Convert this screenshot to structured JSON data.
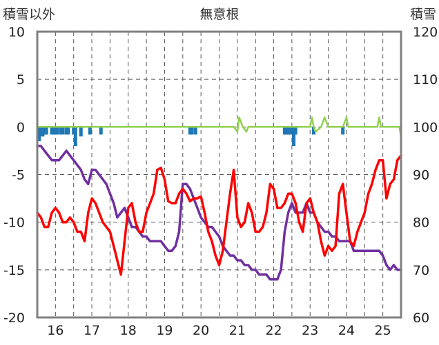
{
  "chart_data": {
    "type": "line",
    "title": "無意根",
    "left_axis_label": "積雪以外",
    "right_axis_label": "積雪",
    "left_ylim": [
      -20,
      10
    ],
    "left_yticks": [
      10,
      5,
      0,
      -5,
      -10,
      -15,
      -20
    ],
    "right_ylim": [
      60,
      120
    ],
    "right_yticks": [
      120,
      110,
      100,
      90,
      80,
      70,
      60
    ],
    "xlim": [
      15.5,
      25.5
    ],
    "xticks": [
      16,
      17,
      18,
      19,
      20,
      21,
      22,
      23,
      24,
      25
    ],
    "grid": true,
    "colors": {
      "temperature": "#ff0000",
      "snow_depth": "#7030a0",
      "precip": "#1f77b4",
      "wind": "#92d050",
      "frame": "#808080"
    },
    "series": [
      {
        "key": "temperature",
        "axis": "left",
        "x": [
          15.5,
          15.6,
          15.7,
          15.8,
          15.9,
          16.0,
          16.1,
          16.2,
          16.3,
          16.4,
          16.5,
          16.6,
          16.7,
          16.8,
          16.9,
          17.0,
          17.1,
          17.2,
          17.3,
          17.4,
          17.5,
          17.6,
          17.7,
          17.8,
          17.9,
          18.0,
          18.1,
          18.2,
          18.3,
          18.4,
          18.5,
          18.6,
          18.7,
          18.8,
          18.9,
          19.0,
          19.1,
          19.2,
          19.3,
          19.4,
          19.5,
          19.6,
          19.7,
          19.8,
          19.9,
          20.0,
          20.1,
          20.2,
          20.3,
          20.4,
          20.5,
          20.6,
          20.7,
          20.8,
          20.9,
          21.0,
          21.1,
          21.2,
          21.3,
          21.4,
          21.5,
          21.6,
          21.7,
          21.8,
          21.9,
          22.0,
          22.1,
          22.2,
          22.3,
          22.4,
          22.5,
          22.6,
          22.7,
          22.8,
          22.9,
          23.0,
          23.1,
          23.2,
          23.3,
          23.4,
          23.5,
          23.6,
          23.7,
          23.8,
          23.9,
          24.0,
          24.1,
          24.2,
          24.3,
          24.4,
          24.5,
          24.6,
          24.7,
          24.8,
          24.9,
          25.0,
          25.1,
          25.2,
          25.3,
          25.4,
          25.5
        ],
        "y": [
          -9,
          -9.5,
          -10.5,
          -10.5,
          -9,
          -8.5,
          -9,
          -10,
          -10,
          -9.5,
          -10,
          -11,
          -11,
          -12,
          -9,
          -7.5,
          -8,
          -9,
          -10,
          -10.5,
          -11,
          -12.5,
          -14,
          -15.5,
          -12,
          -8.5,
          -8,
          -10,
          -11,
          -11,
          -9,
          -8,
          -7,
          -4.5,
          -4.3,
          -5.5,
          -7.8,
          -8,
          -8,
          -7,
          -6.5,
          -7,
          -7.8,
          -7.5,
          -7.5,
          -7.3,
          -9,
          -11,
          -12,
          -13.5,
          -14.5,
          -13,
          -10,
          -7,
          -4.5,
          -9.5,
          -10.5,
          -10,
          -8,
          -9,
          -11,
          -11,
          -10.5,
          -9,
          -6,
          -6.5,
          -8.5,
          -8.5,
          -8,
          -7,
          -7,
          -8,
          -10,
          -11,
          -8,
          -7.5,
          -9,
          -10,
          -12,
          -13.5,
          -12.5,
          -13,
          -12.5,
          -7,
          -6,
          -9,
          -12,
          -12.5,
          -11,
          -10,
          -9,
          -7,
          -6,
          -4.5,
          -3.5,
          -3.5,
          -7.5,
          -6,
          -5.5,
          -3.5,
          -3
        ]
      },
      {
        "key": "snow_depth",
        "axis": "right",
        "x": [
          15.5,
          15.6,
          15.7,
          15.8,
          15.9,
          16.0,
          16.1,
          16.2,
          16.3,
          16.4,
          16.5,
          16.6,
          16.7,
          16.8,
          16.9,
          17.0,
          17.1,
          17.2,
          17.3,
          17.4,
          17.5,
          17.6,
          17.7,
          17.8,
          17.9,
          18.0,
          18.1,
          18.2,
          18.3,
          18.4,
          18.5,
          18.6,
          18.7,
          18.8,
          18.9,
          19.0,
          19.1,
          19.2,
          19.3,
          19.4,
          19.5,
          19.6,
          19.7,
          19.8,
          19.9,
          20.0,
          20.1,
          20.2,
          20.3,
          20.4,
          20.5,
          20.6,
          20.7,
          20.8,
          20.9,
          21.0,
          21.1,
          21.2,
          21.3,
          21.4,
          21.5,
          21.6,
          21.7,
          21.8,
          21.9,
          22.0,
          22.1,
          22.2,
          22.3,
          22.4,
          22.5,
          22.6,
          22.7,
          22.8,
          22.9,
          23.0,
          23.1,
          23.2,
          23.3,
          23.4,
          23.5,
          23.6,
          23.7,
          23.8,
          23.9,
          24.0,
          24.1,
          24.2,
          24.3,
          24.4,
          24.5,
          24.6,
          24.7,
          24.8,
          24.9,
          25.0,
          25.1,
          25.2,
          25.3,
          25.4,
          25.5
        ],
        "y": [
          96,
          96,
          95,
          94,
          93,
          93,
          93,
          94,
          95,
          94,
          93,
          92,
          91,
          89,
          88,
          91,
          91,
          90,
          89,
          88,
          86,
          84,
          81,
          82,
          83,
          81,
          79,
          79,
          78,
          77,
          77,
          76,
          76,
          76,
          76,
          75,
          74,
          74,
          75,
          78,
          88,
          88,
          87,
          85,
          83,
          81,
          80,
          79,
          79,
          78,
          77,
          75,
          74,
          73,
          73,
          72,
          72,
          71,
          71,
          70,
          70,
          69,
          69,
          69,
          68,
          68,
          68,
          70,
          78,
          82,
          84,
          82,
          82,
          82,
          84,
          82,
          82,
          80,
          79,
          78,
          78,
          77,
          77,
          76,
          76,
          76,
          76,
          74,
          74,
          74,
          74,
          74,
          74,
          74,
          74,
          73,
          71,
          70,
          71,
          70,
          70
        ]
      },
      {
        "key": "wind",
        "axis": "left",
        "x": [
          15.5,
          20.9,
          21.0,
          21.05,
          21.15,
          21.25,
          21.3,
          23.0,
          23.05,
          23.1,
          23.15,
          23.3,
          23.4,
          23.5,
          23.9,
          24.0,
          24.05,
          24.1,
          24.85,
          24.9,
          24.95,
          25.0,
          25.45,
          25.5
        ],
        "y": [
          0,
          0,
          -0.5,
          1,
          0,
          -0.5,
          0,
          0,
          1,
          0,
          -0.5,
          0,
          1,
          0,
          0,
          1,
          0,
          0,
          0,
          1,
          0,
          0,
          0,
          -1
        ]
      }
    ],
    "precip_bars": {
      "key": "precip",
      "axis": "left",
      "x": [
        15.55,
        15.6,
        15.65,
        15.7,
        15.75,
        15.9,
        15.95,
        16.0,
        16.05,
        16.15,
        16.2,
        16.3,
        16.35,
        16.5,
        16.55,
        16.7,
        16.95,
        17.25,
        19.7,
        19.75,
        19.85,
        22.3,
        22.35,
        22.4,
        22.45,
        22.5,
        22.55,
        22.6,
        23.1,
        23.9
      ],
      "values": [
        -1.5,
        -1,
        -1,
        -0.8,
        -0.8,
        -0.8,
        -0.8,
        -0.8,
        -0.8,
        -0.8,
        -0.8,
        -0.8,
        -0.8,
        -0.8,
        -2,
        -1,
        -0.8,
        -0.8,
        -0.8,
        -0.8,
        -0.8,
        -0.8,
        -0.8,
        -0.8,
        -0.8,
        -0.8,
        -2,
        -0.8,
        -0.8,
        -0.8
      ]
    }
  }
}
